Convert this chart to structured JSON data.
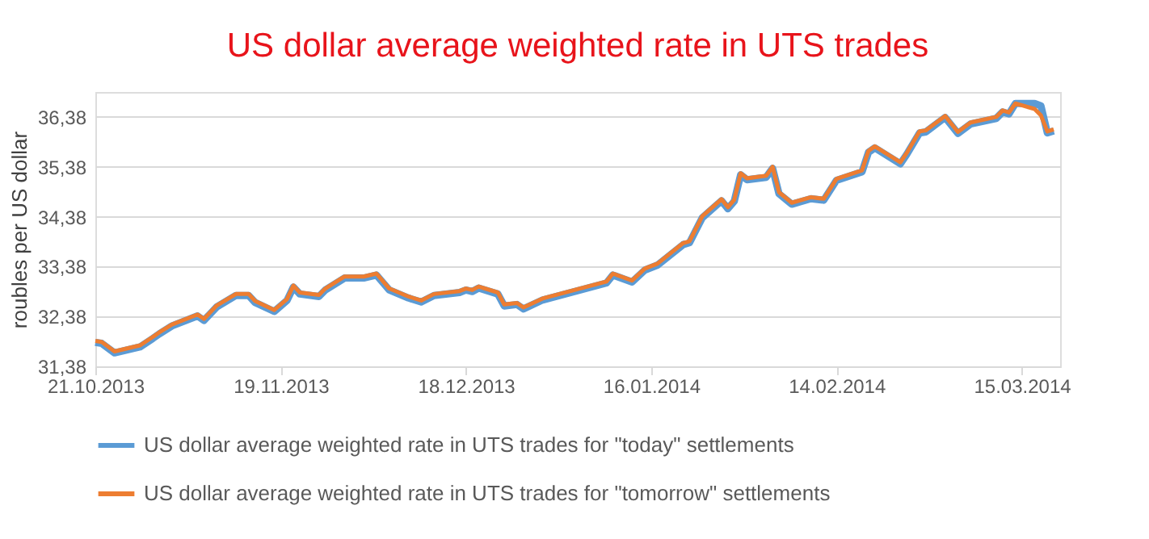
{
  "chart_data": {
    "type": "line",
    "title": "US dollar average weighted rate in UTS trades",
    "ylabel": "roubles per US dollar",
    "x": [
      "2013-10-21",
      "2013-10-22",
      "2013-10-24",
      "2013-10-28",
      "2013-10-30",
      "2013-10-31",
      "2013-11-02",
      "2013-11-06",
      "2013-11-07",
      "2013-11-09",
      "2013-11-12",
      "2013-11-14",
      "2013-11-15",
      "2013-11-18",
      "2013-11-20",
      "2013-11-21",
      "2013-11-22",
      "2013-11-25",
      "2013-11-26",
      "2013-11-29",
      "2013-12-02",
      "2013-12-04",
      "2013-12-06",
      "2013-12-09",
      "2013-12-11",
      "2013-12-13",
      "2013-12-17",
      "2013-12-18",
      "2013-12-19",
      "2013-12-20",
      "2013-12-23",
      "2013-12-24",
      "2013-12-26",
      "2013-12-27",
      "2013-12-30",
      "2014-01-09",
      "2014-01-10",
      "2014-01-13",
      "2014-01-15",
      "2014-01-17",
      "2014-01-21",
      "2014-01-22",
      "2014-01-24",
      "2014-01-27",
      "2014-01-28",
      "2014-01-29",
      "2014-01-30",
      "2014-01-31",
      "2014-02-03",
      "2014-02-04",
      "2014-02-05",
      "2014-02-07",
      "2014-02-10",
      "2014-02-12",
      "2014-02-14",
      "2014-02-18",
      "2014-02-19",
      "2014-02-20",
      "2014-02-24",
      "2014-02-25",
      "2014-02-27",
      "2014-02-28",
      "2014-03-03",
      "2014-03-05",
      "2014-03-07",
      "2014-03-11",
      "2014-03-12",
      "2014-03-13",
      "2014-03-14",
      "2014-03-17",
      "2014-03-18",
      "2014-03-19",
      "2014-03-20"
    ],
    "series": [
      {
        "name": "US dollar average weighted rate in UTS trades for \"today\" settlements",
        "color": "#5b9bd5",
        "values": [
          31.86,
          31.84,
          31.65,
          31.77,
          31.94,
          32.03,
          32.19,
          32.39,
          32.3,
          32.57,
          32.8,
          32.8,
          32.66,
          32.48,
          32.7,
          32.97,
          32.83,
          32.78,
          32.91,
          33.15,
          33.15,
          33.21,
          32.91,
          32.75,
          32.67,
          32.8,
          32.86,
          32.91,
          32.88,
          32.95,
          32.83,
          32.59,
          32.62,
          32.53,
          32.71,
          33.05,
          33.21,
          33.07,
          33.31,
          33.41,
          33.82,
          33.86,
          34.36,
          34.7,
          34.54,
          34.69,
          35.22,
          35.12,
          35.17,
          35.35,
          34.84,
          34.63,
          34.74,
          34.71,
          35.11,
          35.28,
          35.67,
          35.76,
          35.44,
          35.63,
          36.06,
          36.08,
          36.37,
          36.05,
          36.24,
          36.35,
          36.48,
          36.44,
          36.65,
          36.65,
          36.6,
          36.06,
          36.1
        ]
      },
      {
        "name": "US dollar average weighted rate in UTS trades for \"tomorrow\" settlements",
        "color": "#ed7d31",
        "values": [
          31.89,
          31.87,
          31.68,
          31.8,
          31.97,
          32.06,
          32.22,
          32.42,
          32.33,
          32.6,
          32.83,
          32.83,
          32.69,
          32.51,
          32.73,
          33.0,
          32.86,
          32.81,
          32.94,
          33.18,
          33.18,
          33.24,
          32.94,
          32.78,
          32.7,
          32.83,
          32.89,
          32.94,
          32.91,
          32.98,
          32.86,
          32.62,
          32.65,
          32.56,
          32.74,
          33.08,
          33.24,
          33.1,
          33.34,
          33.44,
          33.85,
          33.89,
          34.39,
          34.73,
          34.57,
          34.72,
          35.25,
          35.15,
          35.2,
          35.38,
          34.87,
          34.66,
          34.77,
          34.74,
          35.14,
          35.31,
          35.7,
          35.79,
          35.47,
          35.66,
          36.09,
          36.11,
          36.4,
          36.08,
          36.27,
          36.38,
          36.51,
          36.47,
          36.65,
          36.54,
          36.41,
          36.09,
          36.13
        ]
      }
    ],
    "xlim": [
      "2013-10-21",
      "2014-03-21"
    ],
    "xticks": [
      {
        "value": "2013-10-21",
        "label": "21.10.2013"
      },
      {
        "value": "2013-11-19",
        "label": "19.11.2013"
      },
      {
        "value": "2013-12-18",
        "label": "18.12.2013"
      },
      {
        "value": "2014-01-16",
        "label": "16.01.2014"
      },
      {
        "value": "2014-02-14",
        "label": "14.02.2014"
      },
      {
        "value": "2014-03-15",
        "label": "15.03.2014"
      }
    ],
    "ylim": [
      31.38,
      36.88
    ],
    "yticks": [
      {
        "value": 31.38,
        "label": "31,38"
      },
      {
        "value": 32.38,
        "label": "32,38"
      },
      {
        "value": 33.38,
        "label": "33,38"
      },
      {
        "value": 34.38,
        "label": "34,38"
      },
      {
        "value": 35.38,
        "label": "35,38"
      },
      {
        "value": 36.38,
        "label": "36,38"
      }
    ],
    "grid": "y",
    "legend": "bottom",
    "marker": "none",
    "line_style": "solid"
  }
}
